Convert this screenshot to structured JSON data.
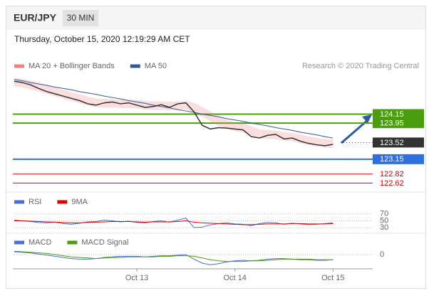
{
  "header": {
    "symbol": "EUR/JPY",
    "timeframe": "30 MIN",
    "datetime": "Thursday, October 15, 2020 12:19:29 AM CET"
  },
  "chart_data": [
    {
      "type": "line",
      "credit": "Research © 2020 Trading Central",
      "categories": [
        null,
        null,
        null,
        null,
        null,
        null,
        null,
        null,
        null,
        null,
        null,
        null,
        null,
        null,
        null,
        "Oct 13",
        null,
        null,
        null,
        null,
        null,
        null,
        null,
        null,
        null,
        null,
        null,
        "Oct 14",
        null,
        null,
        null,
        null,
        null,
        null,
        null,
        null,
        null,
        null,
        null,
        "Oct 15"
      ],
      "ylim": [
        122.5,
        125.5
      ],
      "series": [
        {
          "name": "MA 20 + Bollinger Bands",
          "color": "#f08080",
          "values": [
            124.86,
            124.84,
            124.8,
            124.75,
            124.7,
            124.64,
            124.59,
            124.54,
            124.49,
            124.44,
            124.4,
            124.39,
            124.39,
            124.38,
            124.38,
            124.37,
            124.35,
            124.34,
            124.34,
            124.33,
            124.34,
            124.35,
            124.3,
            124.2,
            124.1,
            124.0,
            123.92,
            123.87,
            123.84,
            123.78,
            123.72,
            123.7,
            123.69,
            123.66,
            123.64,
            123.6,
            123.56,
            123.53,
            123.5,
            123.49
          ]
        },
        {
          "name": "MA 50",
          "color": "#2c5aa0",
          "values": [
            124.92,
            124.89,
            124.85,
            124.82,
            124.79,
            124.75,
            124.72,
            124.69,
            124.65,
            124.62,
            124.59,
            124.55,
            124.52,
            124.49,
            124.45,
            124.42,
            124.39,
            124.35,
            124.32,
            124.29,
            124.25,
            124.22,
            124.19,
            124.15,
            124.12,
            124.09,
            124.05,
            124.02,
            123.99,
            123.95,
            123.92,
            123.89,
            123.85,
            123.82,
            123.79,
            123.75,
            123.72,
            123.69,
            123.65,
            123.62
          ]
        },
        {
          "color": "#333333",
          "values": [
            124.88,
            124.85,
            124.8,
            124.72,
            124.65,
            124.6,
            124.55,
            124.5,
            124.45,
            124.38,
            124.35,
            124.4,
            124.42,
            124.38,
            124.4,
            124.35,
            124.3,
            124.32,
            124.36,
            124.3,
            124.38,
            124.4,
            124.2,
            123.9,
            123.82,
            123.85,
            123.84,
            123.82,
            123.8,
            123.65,
            123.62,
            123.68,
            123.7,
            123.6,
            123.62,
            123.55,
            123.5,
            123.47,
            123.45,
            123.48
          ]
        }
      ],
      "levels": [
        {
          "value": 124.15,
          "color": "#4a9e0e",
          "tag": true
        },
        {
          "value": 123.95,
          "color": "#4a9e0e",
          "tag": true
        },
        {
          "value": 123.52,
          "color": "#333333",
          "tag": true
        },
        {
          "value": 123.15,
          "color": "#2f6fe0",
          "tag": true
        },
        {
          "value": 122.82,
          "color": "#d00000",
          "tag": false
        },
        {
          "value": 122.62,
          "color": "#d00000",
          "tag": false
        }
      ]
    },
    {
      "type": "line",
      "ylim": [
        20,
        80
      ],
      "yticks": [
        30,
        50,
        70
      ],
      "series": [
        {
          "name": "RSI",
          "color": "#4a6fd6",
          "values": [
            52,
            50,
            48,
            45,
            44,
            46,
            42,
            40,
            43,
            47,
            48,
            52,
            50,
            47,
            49,
            45,
            44,
            48,
            50,
            46,
            52,
            58,
            30,
            32,
            38,
            42,
            44,
            41,
            40,
            36,
            42,
            45,
            44,
            40,
            43,
            41,
            39,
            40,
            42,
            44
          ]
        },
        {
          "name": "9MA",
          "color": "#e00000",
          "values": [
            50,
            50,
            49,
            48,
            47,
            46,
            45,
            44,
            44,
            45,
            46,
            47,
            48,
            48,
            48,
            47,
            46,
            47,
            47,
            47,
            48,
            50,
            46,
            44,
            43,
            42,
            41,
            40,
            39,
            39,
            40,
            41,
            41,
            41,
            42,
            42,
            41,
            41,
            41,
            42
          ]
        }
      ]
    },
    {
      "type": "line",
      "ylim": [
        -0.25,
        0.1
      ],
      "yticks": [
        0
      ],
      "series": [
        {
          "name": "MACD",
          "color": "#4a6fd6",
          "values": [
            0.05,
            0.04,
            0.03,
            0.01,
            -0.01,
            -0.03,
            -0.05,
            -0.07,
            -0.08,
            -0.08,
            -0.07,
            -0.05,
            -0.04,
            -0.03,
            -0.03,
            -0.03,
            -0.04,
            -0.03,
            -0.02,
            -0.02,
            -0.01,
            0,
            -0.08,
            -0.15,
            -0.18,
            -0.16,
            -0.13,
            -0.11,
            -0.1,
            -0.11,
            -0.1,
            -0.08,
            -0.07,
            -0.07,
            -0.08,
            -0.09,
            -0.09,
            -0.1,
            -0.1,
            -0.09
          ]
        },
        {
          "name": "MACD Signal",
          "color": "#4a9e0e",
          "values": [
            0.06,
            0.05,
            0.04,
            0.03,
            0.02,
            0,
            -0.02,
            -0.04,
            -0.05,
            -0.06,
            -0.07,
            -0.06,
            -0.05,
            -0.05,
            -0.04,
            -0.04,
            -0.04,
            -0.04,
            -0.03,
            -0.03,
            -0.02,
            -0.02,
            -0.03,
            -0.06,
            -0.09,
            -0.11,
            -0.12,
            -0.12,
            -0.12,
            -0.11,
            -0.11,
            -0.1,
            -0.09,
            -0.08,
            -0.08,
            -0.08,
            -0.08,
            -0.09,
            -0.09,
            -0.09
          ]
        }
      ]
    }
  ]
}
